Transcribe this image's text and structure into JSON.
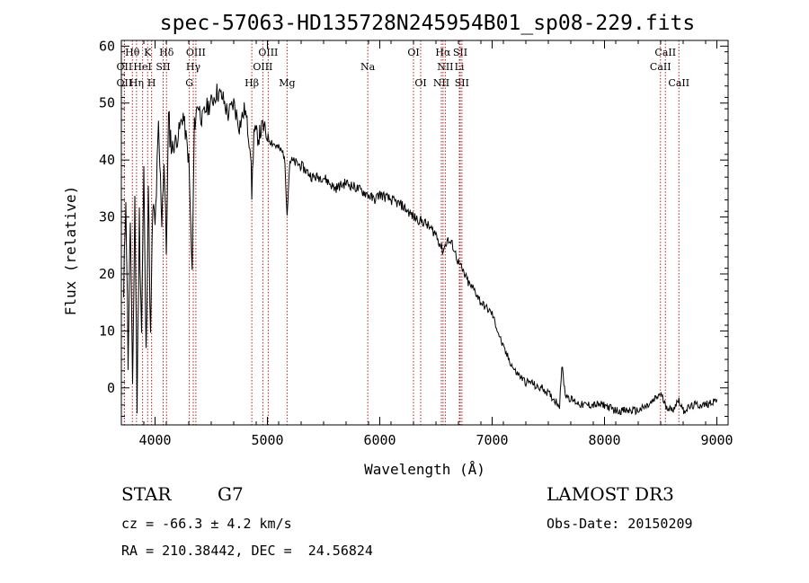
{
  "chart_data": {
    "type": "line",
    "title": "spec-57063-HD135728N245954B01_sp08-229.fits",
    "xlabel": "Wavelength (Å)",
    "ylabel": "Flux (relative)",
    "xlim": [
      3700,
      9100
    ],
    "ylim": [
      -6.5,
      61
    ],
    "xticks": [
      4000,
      5000,
      6000,
      7000,
      8000,
      9000
    ],
    "yticks": [
      0,
      10,
      20,
      30,
      40,
      50,
      60
    ],
    "series": [
      {
        "name": "spectrum",
        "x": [
          3720,
          3740,
          3760,
          3780,
          3800,
          3820,
          3840,
          3860,
          3880,
          3900,
          3920,
          3940,
          3960,
          3980,
          4000,
          4030,
          4060,
          4080,
          4100,
          4120,
          4150,
          4200,
          4250,
          4300,
          4330,
          4350,
          4380,
          4420,
          4450,
          4500,
          4550,
          4600,
          4650,
          4700,
          4750,
          4800,
          4850,
          4861,
          4880,
          4920,
          4960,
          5000,
          5050,
          5100,
          5150,
          5175,
          5200,
          5300,
          5400,
          5500,
          5600,
          5700,
          5800,
          5890,
          5950,
          6000,
          6100,
          6200,
          6300,
          6400,
          6500,
          6563,
          6600,
          6650,
          6700,
          6750,
          6800,
          6850,
          6900,
          6950,
          7000,
          7050,
          7100,
          7150,
          7200,
          7250,
          7300,
          7350,
          7400,
          7450,
          7500,
          7550,
          7600,
          7620,
          7650,
          7700,
          7800,
          7900,
          8000,
          8100,
          8200,
          8300,
          8400,
          8498,
          8542,
          8600,
          8662,
          8700,
          8800,
          8900,
          9000
        ],
        "y": [
          15,
          35,
          5,
          30,
          -2,
          34,
          -3,
          30,
          10,
          38,
          5,
          36,
          8,
          32,
          28,
          45,
          30,
          40,
          24,
          47,
          42,
          44,
          48,
          40,
          20,
          46,
          50,
          47,
          49,
          50,
          52,
          51,
          48,
          50,
          46,
          49,
          42,
          34,
          45,
          44,
          46,
          44,
          43,
          42,
          41,
          31,
          40,
          39,
          37,
          37,
          35,
          36,
          35,
          34,
          33,
          34,
          33,
          32,
          30,
          29,
          27,
          24,
          26,
          25,
          22,
          20,
          18,
          17,
          15,
          14,
          13,
          10,
          7,
          5,
          3,
          2,
          1,
          1,
          0,
          0,
          -1,
          -2,
          -3,
          4,
          -1,
          -2,
          -3,
          -3,
          -3,
          -4,
          -4,
          -4,
          -3,
          -1,
          -3,
          -4,
          -2,
          -4,
          -3,
          -3,
          -2
        ]
      }
    ],
    "lines": [
      {
        "label": "Hθ",
        "x": 3798,
        "row": 1
      },
      {
        "label": "K",
        "x": 3934,
        "row": 1
      },
      {
        "label": "Hδ",
        "x": 4102,
        "row": 1
      },
      {
        "label": "OIII",
        "x": 4363,
        "row": 1
      },
      {
        "label": "OIII",
        "x": 5007,
        "row": 1
      },
      {
        "label": "OI",
        "x": 6300,
        "row": 1
      },
      {
        "label": "Hα",
        "x": 6563,
        "row": 1
      },
      {
        "label": "SII",
        "x": 6716,
        "row": 1
      },
      {
        "label": "CaII",
        "x": 8542,
        "row": 1
      },
      {
        "label": "OII",
        "x": 3727,
        "row": 2
      },
      {
        "label": "HeI",
        "x": 3889,
        "row": 2
      },
      {
        "label": "SII",
        "x": 4072,
        "row": 2
      },
      {
        "label": "Hγ",
        "x": 4340,
        "row": 2
      },
      {
        "label": "OIII",
        "x": 4959,
        "row": 2
      },
      {
        "label": "Na",
        "x": 5893,
        "row": 2
      },
      {
        "label": "NII",
        "x": 6583,
        "row": 2
      },
      {
        "label": "Li",
        "x": 6708,
        "row": 2
      },
      {
        "label": "CaII",
        "x": 8498,
        "row": 2
      },
      {
        "label": "OII",
        "x": 3727,
        "row": 3
      },
      {
        "label": "Hη",
        "x": 3835,
        "row": 3
      },
      {
        "label": "H",
        "x": 3969,
        "row": 3
      },
      {
        "label": "G",
        "x": 4305,
        "row": 3
      },
      {
        "label": "Hβ",
        "x": 4861,
        "row": 3
      },
      {
        "label": "Mg",
        "x": 5175,
        "row": 3
      },
      {
        "label": "OI",
        "x": 6364,
        "row": 3
      },
      {
        "label": "NII",
        "x": 6548,
        "row": 3
      },
      {
        "label": "SII",
        "x": 6731,
        "row": 3
      },
      {
        "label": "CaII",
        "x": 8662,
        "row": 3
      }
    ]
  },
  "info": {
    "object_class": "STAR",
    "subclass": "G7",
    "survey": "LAMOST DR3",
    "redshift": "cz = -66.3 ± 4.2 km/s",
    "obs_date": "Obs-Date: 20150209",
    "coords": "RA = 210.38442, DEC =  24.56824"
  },
  "colors": {
    "line_markers": "#b22222",
    "spectrum": "#000000"
  }
}
